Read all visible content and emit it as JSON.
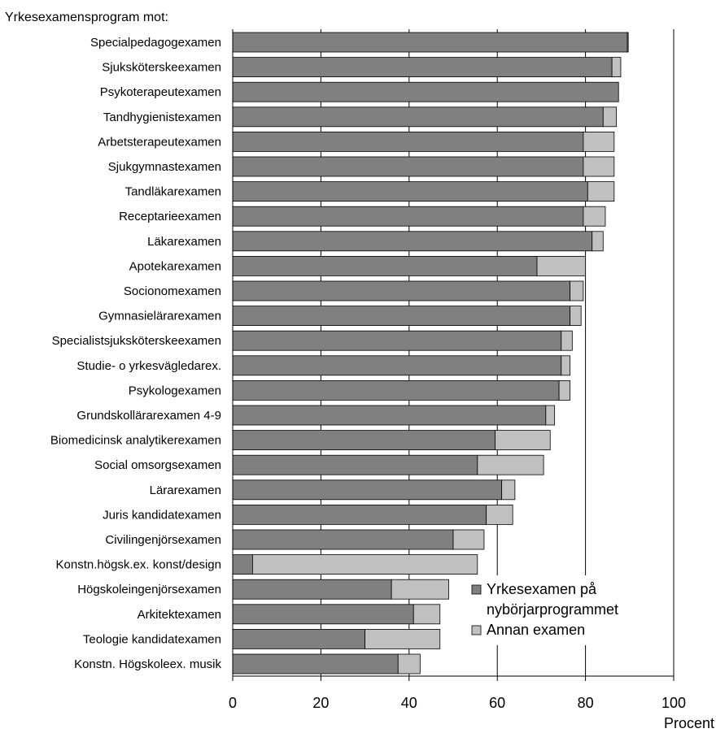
{
  "chart_data": {
    "type": "bar",
    "orientation": "horizontal",
    "stacked": true,
    "title": "Yrkesexamensprogram mot:",
    "xlabel": "Procent",
    "xlim": [
      0,
      100
    ],
    "xticks": [
      0,
      20,
      40,
      60,
      80,
      100
    ],
    "grid": true,
    "legend_position": "bottom-right",
    "categories": [
      "Specialpedagogexamen",
      "Sjuksköterskeexamen",
      "Psykoterapeutexamen",
      "Tandhygienistexamen",
      "Arbetsterapeutexamen",
      "Sjukgymnastexamen",
      "Tandläkarexamen",
      "Receptarieexamen",
      "Läkarexamen",
      "Apotekarexamen",
      "Socionomexamen",
      "Gymnasielärarexamen",
      "Specialistsjuksköterskeexamen",
      "Studie- o yrkesvägledarex.",
      "Psykologexamen",
      "Grundskollärarexamen 4-9",
      "Biomedicinsk analytikerexamen",
      "Social omsorgsexamen",
      "Lärarexamen",
      "Juris kandidatexamen",
      "Civilingenjörsexamen",
      "Konstn.högsk.ex. konst/design",
      "Högskoleingenjörsexamen",
      "Arkitektexamen",
      "Teologie kandidatexamen",
      "Konstn. Högskoleex. musik"
    ],
    "series": [
      {
        "name": "Yrkesexamen på nybörjarprogrammet",
        "color": "#808080",
        "values": [
          89.5,
          86,
          87.5,
          84,
          79.5,
          79.5,
          80.5,
          79.5,
          81.5,
          69,
          76.5,
          76.5,
          74.5,
          74.5,
          74,
          71,
          59.5,
          55.5,
          61,
          57.5,
          50,
          4.5,
          36,
          41,
          30,
          37.5
        ]
      },
      {
        "name": "Annan examen",
        "color": "#c0c0c0",
        "values": [
          0.2,
          2,
          0,
          3,
          7,
          7,
          6,
          5,
          2.5,
          11,
          3,
          2.5,
          2.5,
          2,
          2.5,
          2,
          12.5,
          15,
          3,
          6,
          7,
          51,
          13,
          6,
          17,
          5
        ]
      }
    ]
  }
}
